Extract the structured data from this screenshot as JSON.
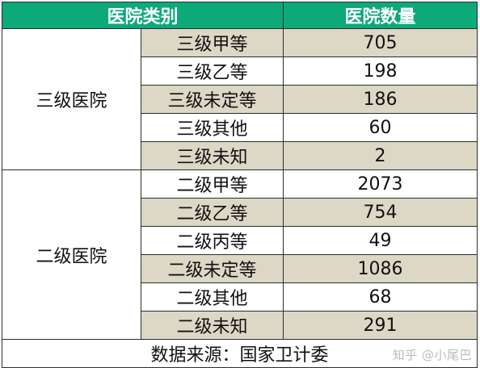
{
  "header": {
    "category": "医院类别",
    "count": "医院数量"
  },
  "groups": [
    {
      "label": "三级医院",
      "rows": [
        {
          "type": "三级甲等",
          "count": "705"
        },
        {
          "type": "三级乙等",
          "count": "198"
        },
        {
          "type": "三级未定等",
          "count": "186"
        },
        {
          "type": "三级其他",
          "count": "60"
        },
        {
          "type": "三级未知",
          "count": "2"
        }
      ]
    },
    {
      "label": "二级医院",
      "rows": [
        {
          "type": "二级甲等",
          "count": "2073"
        },
        {
          "type": "二级乙等",
          "count": "754"
        },
        {
          "type": "二级丙等",
          "count": "49"
        },
        {
          "type": "二级未定等",
          "count": "1086"
        },
        {
          "type": "二级其他",
          "count": "68"
        },
        {
          "type": "二级未知",
          "count": "291"
        }
      ]
    }
  ],
  "footer": {
    "source": "数据来源：国家卫计委"
  },
  "watermark": "知乎 @小尾巴",
  "colors": {
    "header_bg": "#0ea97a",
    "shaded_row": "#ddd7c6"
  }
}
